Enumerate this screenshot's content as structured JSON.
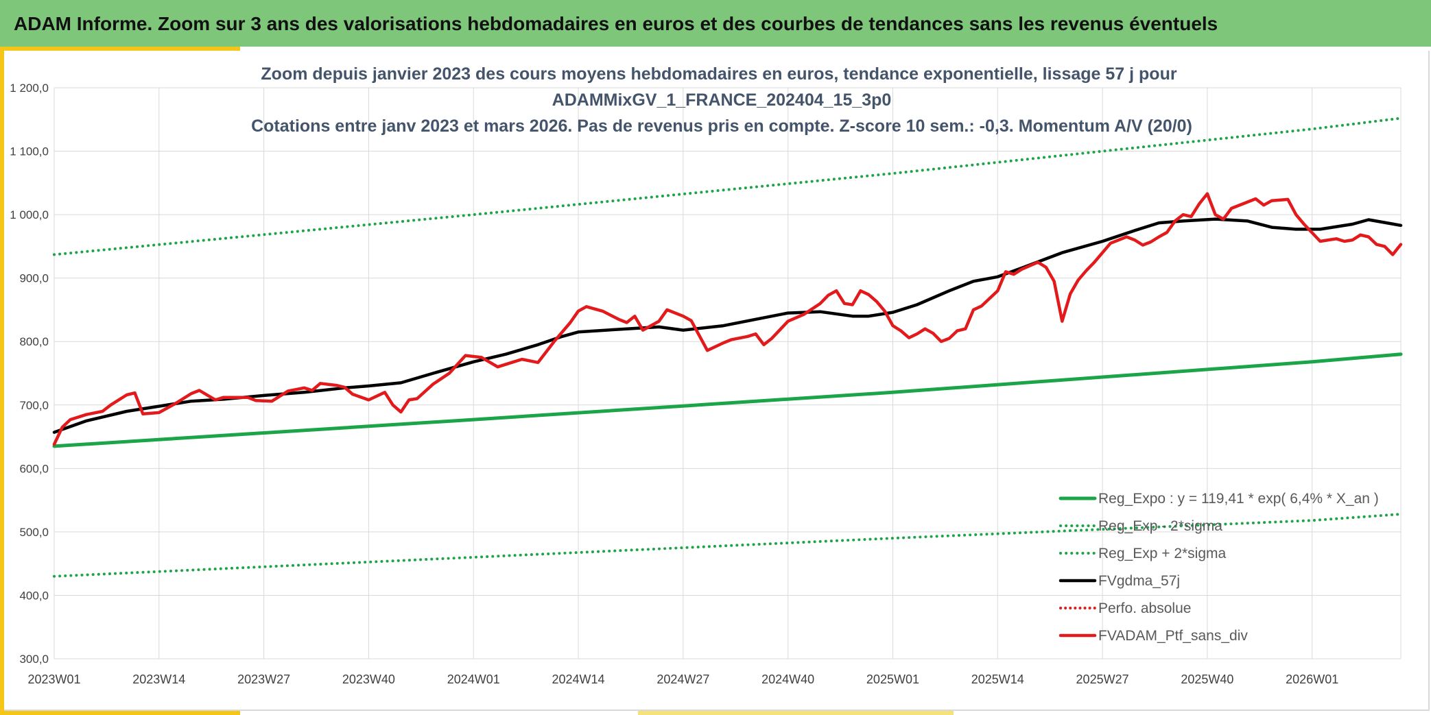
{
  "banner": {
    "title": "ADAM Informe. Zoom sur 3 ans des valorisations hebdomadaires en euros et des courbes de tendances sans les revenus éventuels"
  },
  "colors": {
    "banner": "#7dc67a",
    "accent": "#f5c518",
    "reg_expo": "#1ba548",
    "sigma": "#1ba548",
    "fvgdma": "#000000",
    "perfo": "#e31a1c",
    "ptf": "#e31a1c"
  },
  "chart_data": {
    "type": "line",
    "title_lines": [
      "Zoom depuis janvier 2023 des cours moyens hebdomadaires en euros, tendance exponentielle, lissage 57 j pour",
      "ADAMMixGV_1_FRANCE_202404_15_3p0",
      "Cotations entre janv 2023 et mars 2026. Pas de revenus pris en compte. Z-score 10 sem.: -0,3. Momentum A/V (20/0)"
    ],
    "ylim": [
      300,
      1200
    ],
    "yticks": [
      "300,0",
      "400,0",
      "500,0",
      "600,0",
      "700,0",
      "800,0",
      "900,0",
      "1 000,0",
      "1 100,0",
      "1 200,0"
    ],
    "x_range": [
      1,
      168
    ],
    "xticks": [
      {
        "label": "2023W01",
        "i": 1
      },
      {
        "label": "2023W14",
        "i": 14
      },
      {
        "label": "2023W27",
        "i": 27
      },
      {
        "label": "2023W40",
        "i": 40
      },
      {
        "label": "2024W01",
        "i": 53
      },
      {
        "label": "2024W14",
        "i": 66
      },
      {
        "label": "2024W27",
        "i": 79
      },
      {
        "label": "2024W40",
        "i": 92
      },
      {
        "label": "2025W01",
        "i": 105
      },
      {
        "label": "2025W14",
        "i": 118
      },
      {
        "label": "2025W27",
        "i": 131
      },
      {
        "label": "2025W40",
        "i": 144
      },
      {
        "label": "2026W01",
        "i": 157
      }
    ],
    "grid": true,
    "legend_position": "bottom-right",
    "series": [
      {
        "key": "reg_expo",
        "name": "Reg_Expo : y = 119,41 * exp( 6,4% *  X_an )",
        "style": "solid",
        "points": [
          [
            1,
            635
          ],
          [
            53,
            677
          ],
          [
            105,
            720
          ],
          [
            157,
            768
          ],
          [
            168,
            780
          ]
        ]
      },
      {
        "key": "reg_minus",
        "name": "Reg_Exp - 2*sigma",
        "style": "dotted",
        "points": [
          [
            1,
            430
          ],
          [
            53,
            460
          ],
          [
            105,
            490
          ],
          [
            157,
            518
          ],
          [
            168,
            528
          ]
        ]
      },
      {
        "key": "reg_plus",
        "name": "Reg_Exp + 2*sigma",
        "style": "dotted",
        "points": [
          [
            1,
            937
          ],
          [
            53,
            1000
          ],
          [
            105,
            1065
          ],
          [
            157,
            1135
          ],
          [
            168,
            1152
          ]
        ]
      },
      {
        "key": "fvgdma",
        "name": "FVgdma_57j",
        "style": "solid",
        "points": [
          [
            1,
            657
          ],
          [
            5,
            675
          ],
          [
            10,
            690
          ],
          [
            14,
            698
          ],
          [
            18,
            706
          ],
          [
            22,
            709
          ],
          [
            27,
            715
          ],
          [
            32,
            720
          ],
          [
            37,
            727
          ],
          [
            40,
            730
          ],
          [
            44,
            735
          ],
          [
            48,
            750
          ],
          [
            53,
            768
          ],
          [
            57,
            780
          ],
          [
            61,
            795
          ],
          [
            64,
            808
          ],
          [
            66,
            815
          ],
          [
            72,
            820
          ],
          [
            76,
            823
          ],
          [
            79,
            818
          ],
          [
            84,
            825
          ],
          [
            88,
            835
          ],
          [
            92,
            845
          ],
          [
            96,
            847
          ],
          [
            100,
            840
          ],
          [
            102,
            840
          ],
          [
            105,
            846
          ],
          [
            108,
            858
          ],
          [
            112,
            880
          ],
          [
            115,
            895
          ],
          [
            118,
            902
          ],
          [
            121,
            916
          ],
          [
            126,
            940
          ],
          [
            131,
            958
          ],
          [
            135,
            975
          ],
          [
            138,
            987
          ],
          [
            141,
            990
          ],
          [
            145,
            993
          ],
          [
            149,
            990
          ],
          [
            152,
            980
          ],
          [
            155,
            977
          ],
          [
            158,
            977
          ],
          [
            162,
            985
          ],
          [
            164,
            992
          ],
          [
            168,
            983
          ]
        ]
      },
      {
        "key": "perfo",
        "name": "Perfo. absolue",
        "style": "dotted",
        "points": []
      },
      {
        "key": "ptf",
        "name": "FVADAM_Ptf_sans_div",
        "style": "solid",
        "points": [
          [
            1,
            638
          ],
          [
            2,
            665
          ],
          [
            3,
            677
          ],
          [
            5,
            685
          ],
          [
            7,
            690
          ],
          [
            8,
            700
          ],
          [
            10,
            716
          ],
          [
            11,
            719
          ],
          [
            12,
            686
          ],
          [
            14,
            688
          ],
          [
            16,
            702
          ],
          [
            18,
            718
          ],
          [
            19,
            723
          ],
          [
            21,
            708
          ],
          [
            22,
            712
          ],
          [
            25,
            712
          ],
          [
            26,
            707
          ],
          [
            28,
            706
          ],
          [
            30,
            722
          ],
          [
            32,
            727
          ],
          [
            33,
            723
          ],
          [
            34,
            734
          ],
          [
            36,
            731
          ],
          [
            37,
            728
          ],
          [
            38,
            717
          ],
          [
            40,
            708
          ],
          [
            42,
            720
          ],
          [
            43,
            700
          ],
          [
            44,
            689
          ],
          [
            45,
            708
          ],
          [
            46,
            710
          ],
          [
            48,
            733
          ],
          [
            50,
            750
          ],
          [
            52,
            778
          ],
          [
            54,
            775
          ],
          [
            56,
            760
          ],
          [
            58,
            768
          ],
          [
            59,
            772
          ],
          [
            61,
            767
          ],
          [
            63,
            800
          ],
          [
            65,
            830
          ],
          [
            66,
            848
          ],
          [
            67,
            855
          ],
          [
            69,
            848
          ],
          [
            71,
            835
          ],
          [
            72,
            830
          ],
          [
            73,
            840
          ],
          [
            74,
            818
          ],
          [
            76,
            832
          ],
          [
            77,
            850
          ],
          [
            79,
            840
          ],
          [
            80,
            833
          ],
          [
            82,
            786
          ],
          [
            84,
            798
          ],
          [
            85,
            803
          ],
          [
            87,
            808
          ],
          [
            88,
            812
          ],
          [
            89,
            795
          ],
          [
            90,
            805
          ],
          [
            92,
            832
          ],
          [
            94,
            843
          ],
          [
            96,
            860
          ],
          [
            97,
            873
          ],
          [
            98,
            880
          ],
          [
            99,
            860
          ],
          [
            100,
            858
          ],
          [
            101,
            880
          ],
          [
            102,
            874
          ],
          [
            103,
            863
          ],
          [
            104,
            848
          ],
          [
            105,
            825
          ],
          [
            106,
            817
          ],
          [
            107,
            806
          ],
          [
            108,
            812
          ],
          [
            109,
            820
          ],
          [
            110,
            813
          ],
          [
            111,
            800
          ],
          [
            112,
            805
          ],
          [
            113,
            817
          ],
          [
            114,
            820
          ],
          [
            115,
            850
          ],
          [
            116,
            856
          ],
          [
            118,
            880
          ],
          [
            119,
            910
          ],
          [
            120,
            906
          ],
          [
            121,
            914
          ],
          [
            123,
            925
          ],
          [
            124,
            917
          ],
          [
            125,
            895
          ],
          [
            126,
            832
          ],
          [
            127,
            875
          ],
          [
            128,
            897
          ],
          [
            129,
            912
          ],
          [
            130,
            925
          ],
          [
            131,
            940
          ],
          [
            132,
            955
          ],
          [
            134,
            965
          ],
          [
            135,
            960
          ],
          [
            136,
            952
          ],
          [
            137,
            957
          ],
          [
            138,
            965
          ],
          [
            139,
            972
          ],
          [
            140,
            990
          ],
          [
            141,
            1000
          ],
          [
            142,
            997
          ],
          [
            143,
            1017
          ],
          [
            144,
            1033
          ],
          [
            145,
            1000
          ],
          [
            146,
            993
          ],
          [
            147,
            1010
          ],
          [
            149,
            1020
          ],
          [
            150,
            1025
          ],
          [
            151,
            1015
          ],
          [
            152,
            1022
          ],
          [
            154,
            1024
          ],
          [
            155,
            1000
          ],
          [
            156,
            985
          ],
          [
            158,
            958
          ],
          [
            159,
            960
          ],
          [
            160,
            962
          ],
          [
            161,
            958
          ],
          [
            162,
            960
          ],
          [
            163,
            968
          ],
          [
            164,
            965
          ],
          [
            165,
            953
          ],
          [
            166,
            950
          ],
          [
            167,
            937
          ],
          [
            168,
            953
          ]
        ]
      }
    ]
  }
}
